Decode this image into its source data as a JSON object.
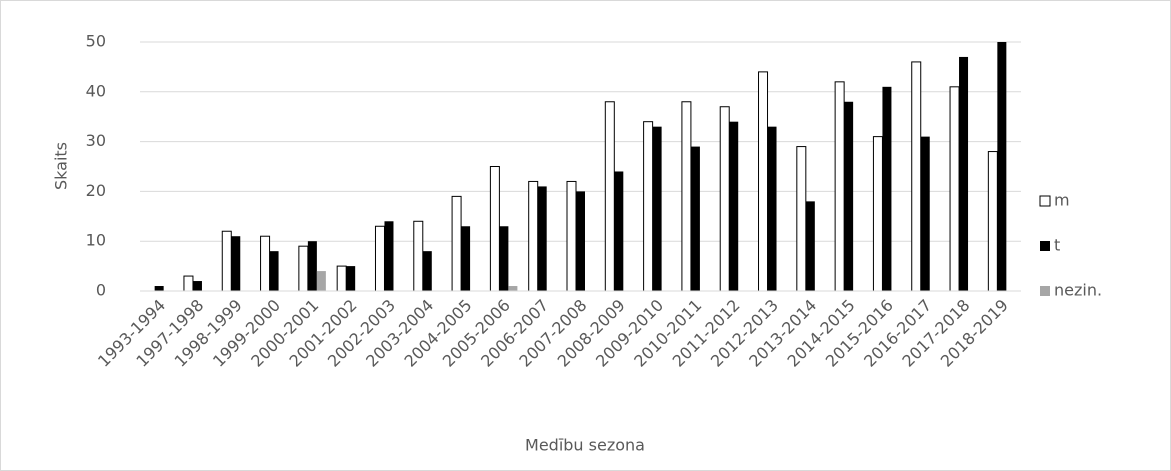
{
  "chart_data": {
    "type": "bar",
    "x_label": "Medību sezona",
    "y_label": "Skaits",
    "categories": [
      "1993-1994",
      "1997-1998",
      "1998-1999",
      "1999-2000",
      "2000-2001",
      "2001-2002",
      "2002-2003",
      "2003-2004",
      "2004-2005",
      "2005-2006",
      "2006-2007",
      "2007-2008",
      "2008-2009",
      "2009-2010",
      "2010-2011",
      "2011-2012",
      "2012-2013",
      "2013-2014",
      "2014-2015",
      "2015-2016",
      "2016-2017",
      "2017-2018",
      "2018-2019"
    ],
    "series": [
      {
        "name": "m",
        "color": "#ffffff",
        "values": [
          0,
          3,
          12,
          11,
          9,
          5,
          13,
          14,
          19,
          25,
          22,
          22,
          38,
          34,
          38,
          37,
          44,
          29,
          42,
          31,
          46,
          41,
          28
        ]
      },
      {
        "name": "t",
        "color": "#000000",
        "values": [
          1,
          2,
          11,
          8,
          10,
          5,
          14,
          8,
          13,
          13,
          21,
          20,
          24,
          33,
          29,
          34,
          33,
          18,
          38,
          41,
          31,
          47,
          50
        ]
      },
      {
        "name": "nezin.",
        "color": "#a6a6a6",
        "values": [
          0,
          0,
          0,
          0,
          4,
          0,
          0,
          0,
          0,
          1,
          0,
          0,
          0,
          0,
          0,
          0,
          0,
          0,
          0,
          0,
          0,
          0,
          0
        ]
      }
    ],
    "ylim": [
      0,
      50
    ],
    "yticks": [
      0,
      10,
      20,
      30,
      40,
      50
    ],
    "grid": true,
    "legend": "right"
  }
}
